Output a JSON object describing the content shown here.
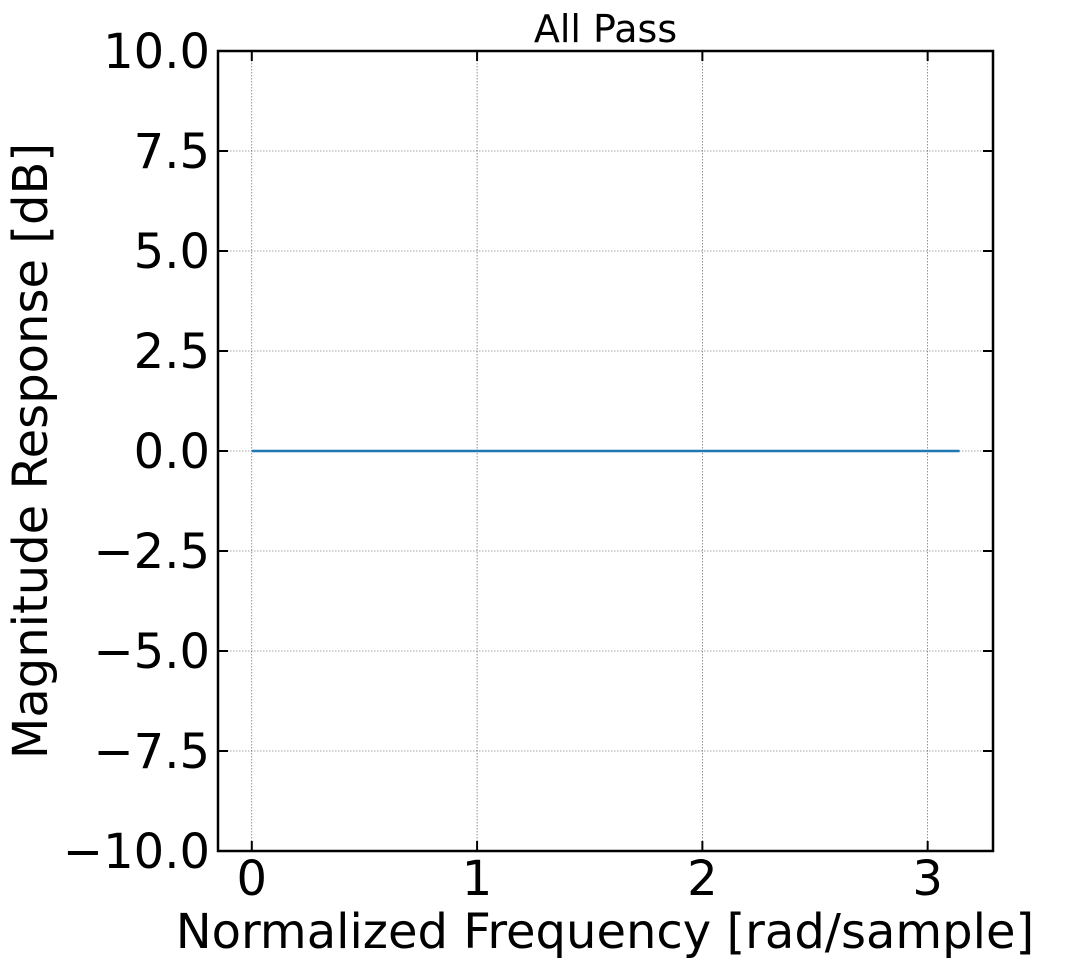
{
  "chart_data": {
    "type": "line",
    "title": "All Pass",
    "xlabel": "Normalized Frequency [rad/sample]",
    "ylabel": "Magnitude Response [dB]",
    "xlim": [
      -0.15,
      3.29
    ],
    "ylim": [
      -10.0,
      10.0
    ],
    "xticks": [
      0,
      1,
      2,
      3
    ],
    "xtick_labels": [
      "0",
      "1",
      "2",
      "3"
    ],
    "yticks": [
      -10.0,
      -7.5,
      -5.0,
      -2.5,
      0.0,
      2.5,
      5.0,
      7.5,
      10.0
    ],
    "ytick_labels": [
      "−10.0",
      "−7.5",
      "−5.0",
      "−2.5",
      "0.0",
      "2.5",
      "5.0",
      "7.5",
      "10.0"
    ],
    "grid": true,
    "series": [
      {
        "color": "#1f77b4",
        "x": [
          0.0,
          0.5,
          1.0,
          1.5,
          2.0,
          2.5,
          3.0,
          3.1416
        ],
        "y": [
          0.0,
          0.0,
          0.0,
          0.0,
          0.0,
          0.0,
          0.0,
          0.0
        ]
      }
    ]
  }
}
